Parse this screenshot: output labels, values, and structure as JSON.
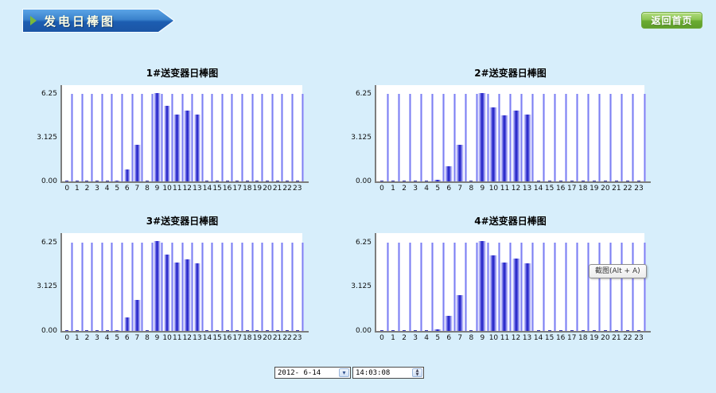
{
  "header": {
    "title": "发电日棒图",
    "back_button_label": "返回首页"
  },
  "tooltip": {
    "label": "截图(Alt + A)"
  },
  "controls": {
    "date_value": "2012- 6-14",
    "time_value": "14:03:08"
  },
  "colors": {
    "page_bg": "#d7eefb",
    "banner_blue_top": "#5ba4e6",
    "banner_blue_bottom": "#1b55a5",
    "banner_arrow_green": "#79b83c",
    "button_green": "#6aab31",
    "bar_core_blue": "#1f1fc0",
    "guide_line_blue": "#6c6cf0",
    "axis_gray": "#7d7d7d",
    "plot_bg": "#ffffff"
  },
  "chart_data": [
    {
      "type": "bar",
      "title": "1#送变器日棒图",
      "categories": [
        "0",
        "1",
        "2",
        "3",
        "4",
        "5",
        "6",
        "7",
        "8",
        "9",
        "10",
        "11",
        "12",
        "13",
        "14",
        "15",
        "16",
        "17",
        "18",
        "19",
        "20",
        "21",
        "22",
        "23"
      ],
      "values": [
        0,
        0,
        0,
        0,
        0,
        0.05,
        0.85,
        2.65,
        0,
        6.35,
        5.4,
        4.8,
        5.05,
        4.8,
        0,
        0,
        0,
        0,
        0,
        0,
        0,
        0,
        0,
        0
      ],
      "yticks": [
        "6.25",
        "3.125",
        "0.00"
      ],
      "ytick_values": [
        6.25,
        3.125,
        0
      ],
      "ylim": [
        0,
        6.9
      ],
      "guide_value": 6.25,
      "xlabel": "",
      "ylabel": "",
      "grid": "vertical-guides",
      "legend": "none"
    },
    {
      "type": "bar",
      "title": "2#送变器日棒图",
      "categories": [
        "0",
        "1",
        "2",
        "3",
        "4",
        "5",
        "6",
        "7",
        "8",
        "9",
        "10",
        "11",
        "12",
        "13",
        "14",
        "15",
        "16",
        "17",
        "18",
        "19",
        "20",
        "21",
        "22",
        "23"
      ],
      "values": [
        0,
        0,
        0,
        0,
        0,
        0.1,
        1.1,
        2.6,
        0,
        6.35,
        5.3,
        4.75,
        5.05,
        4.8,
        0,
        0,
        0,
        0,
        0,
        0,
        0,
        0,
        0,
        0
      ],
      "yticks": [
        "6.25",
        "3.125",
        "0.00"
      ],
      "ytick_values": [
        6.25,
        3.125,
        0
      ],
      "ylim": [
        0,
        6.9
      ],
      "guide_value": 6.25,
      "xlabel": "",
      "ylabel": "",
      "grid": "vertical-guides",
      "legend": "none"
    },
    {
      "type": "bar",
      "title": "3#送变器日棒图",
      "categories": [
        "0",
        "1",
        "2",
        "3",
        "4",
        "5",
        "6",
        "7",
        "8",
        "9",
        "10",
        "11",
        "12",
        "13",
        "14",
        "15",
        "16",
        "17",
        "18",
        "19",
        "20",
        "21",
        "22",
        "23"
      ],
      "values": [
        0,
        0,
        0,
        0,
        0,
        0.08,
        0.95,
        2.2,
        0,
        6.35,
        5.4,
        4.8,
        5.05,
        4.75,
        0,
        0,
        0,
        0,
        0,
        0,
        0,
        0,
        0,
        0
      ],
      "yticks": [
        "6.25",
        "3.125",
        "0.00"
      ],
      "ytick_values": [
        6.25,
        3.125,
        0
      ],
      "ylim": [
        0,
        6.9
      ],
      "guide_value": 6.25,
      "xlabel": "",
      "ylabel": "",
      "grid": "vertical-guides",
      "legend": "none"
    },
    {
      "type": "bar",
      "title": "4#送变器日棒图",
      "categories": [
        "0",
        "1",
        "2",
        "3",
        "4",
        "5",
        "6",
        "7",
        "8",
        "9",
        "10",
        "11",
        "12",
        "13",
        "14",
        "15",
        "16",
        "17",
        "18",
        "19",
        "20",
        "21",
        "22",
        "23"
      ],
      "values": [
        0,
        0,
        0,
        0,
        0,
        0.1,
        1.05,
        2.55,
        0,
        6.35,
        5.35,
        4.8,
        5.1,
        4.75,
        0,
        0,
        0,
        0,
        0,
        0,
        0,
        0,
        0,
        0
      ],
      "yticks": [
        "6.25",
        "3.125",
        "0.00"
      ],
      "ytick_values": [
        6.25,
        3.125,
        0
      ],
      "ylim": [
        0,
        6.9
      ],
      "guide_value": 6.25,
      "xlabel": "",
      "ylabel": "",
      "grid": "vertical-guides",
      "legend": "none"
    }
  ]
}
